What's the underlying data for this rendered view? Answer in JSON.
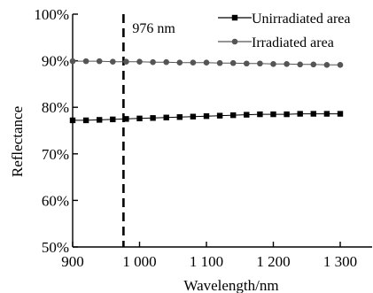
{
  "chart_data": {
    "type": "line",
    "xlabel": "Wavelength/nm",
    "ylabel": "Reflectance",
    "xlim": [
      900,
      1300
    ],
    "ylim": [
      50,
      100
    ],
    "x_ticks": [
      900,
      1000,
      1100,
      1200,
      1300
    ],
    "x_tick_labels": [
      "900",
      "1 000",
      "1 100",
      "1 200",
      "1 300"
    ],
    "y_ticks": [
      50,
      60,
      70,
      80,
      90,
      100
    ],
    "y_tick_labels": [
      "50%",
      "60%",
      "70%",
      "80%",
      "90%",
      "100%"
    ],
    "grid": false,
    "legend_position": "top-right",
    "annotation": {
      "text": "976 nm",
      "x": 976,
      "line_style": "dashed-vertical"
    },
    "series": [
      {
        "name": "Unirradiated area",
        "marker": "square",
        "color": "#000000",
        "x": [
          900,
          920,
          940,
          960,
          980,
          1000,
          1020,
          1040,
          1060,
          1080,
          1100,
          1120,
          1140,
          1160,
          1180,
          1200,
          1220,
          1240,
          1260,
          1280,
          1300
        ],
        "values": [
          77.2,
          77.2,
          77.3,
          77.4,
          77.5,
          77.6,
          77.7,
          77.8,
          77.9,
          78.0,
          78.1,
          78.2,
          78.3,
          78.4,
          78.5,
          78.5,
          78.5,
          78.6,
          78.6,
          78.6,
          78.6
        ]
      },
      {
        "name": "Irradiated area",
        "marker": "circle",
        "color": "#555555",
        "x": [
          900,
          920,
          940,
          960,
          980,
          1000,
          1020,
          1040,
          1060,
          1080,
          1100,
          1120,
          1140,
          1160,
          1180,
          1200,
          1220,
          1240,
          1260,
          1280,
          1300
        ],
        "values": [
          89.9,
          89.9,
          89.9,
          89.8,
          89.8,
          89.8,
          89.7,
          89.7,
          89.6,
          89.6,
          89.6,
          89.5,
          89.5,
          89.4,
          89.4,
          89.3,
          89.3,
          89.2,
          89.2,
          89.1,
          89.1
        ]
      }
    ]
  }
}
